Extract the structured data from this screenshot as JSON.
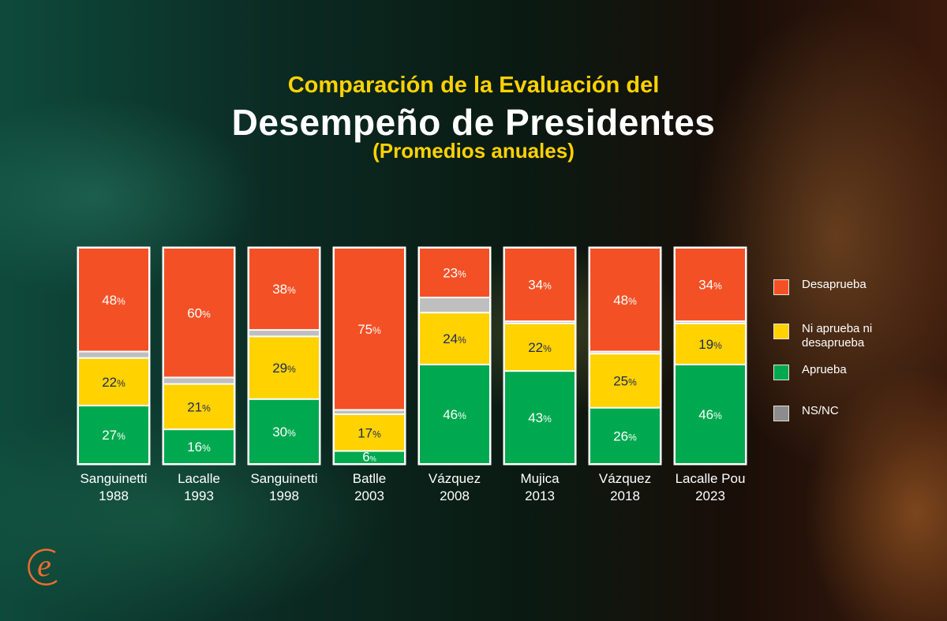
{
  "title_line1": "Comparación de la Evaluación del",
  "title_line2": "Desempeño de Presidentes",
  "title_line3": "(Promedios anuales)",
  "chart_data": {
    "type": "bar",
    "stacked": true,
    "title": "Comparación de la Evaluación del Desempeño de Presidentes (Promedios anuales)",
    "xlabel": "",
    "ylabel": "",
    "ylim": [
      0,
      100
    ],
    "unit": "%",
    "categories": [
      {
        "name": "Sanguinetti",
        "year": "1988"
      },
      {
        "name": "Lacalle",
        "year": "1993"
      },
      {
        "name": "Sanguinetti",
        "year": "1998"
      },
      {
        "name": "Batlle",
        "year": "2003"
      },
      {
        "name": "Vázquez",
        "year": "2008"
      },
      {
        "name": "Mujica",
        "year": "2013"
      },
      {
        "name": "Vázquez",
        "year": "2018"
      },
      {
        "name": "Lacalle Pou",
        "year": "2023"
      }
    ],
    "series": [
      {
        "key": "desaprueba",
        "name": "Desaprueba",
        "color": "#f35125",
        "text_color": "#ffffff",
        "labeled": true,
        "values": [
          48,
          60,
          38,
          75,
          23,
          34,
          48,
          34
        ]
      },
      {
        "key": "nsnc",
        "name": "NS/NC",
        "color": "#bfbfbf",
        "text_color": "#ffffff",
        "labeled": false,
        "values": [
          3,
          3,
          3,
          2,
          7,
          1,
          1,
          1
        ]
      },
      {
        "key": "ni",
        "name": "Ni aprueba ni desaprueba",
        "color": "#ffd200",
        "text_color": "#1b2a5a",
        "labeled": true,
        "values": [
          22,
          21,
          29,
          17,
          24,
          22,
          25,
          19
        ]
      },
      {
        "key": "aprueba",
        "name": "Aprueba",
        "color": "#00a94f",
        "text_color": "#ffffff",
        "labeled": true,
        "values": [
          27,
          16,
          30,
          6,
          46,
          43,
          26,
          46
        ]
      }
    ],
    "stack_order": "top-to-bottom: Desaprueba, NS/NC, Ni aprueba ni desaprueba, Aprueba",
    "legend_position": "right",
    "grid": false
  },
  "legend": [
    {
      "label": "Desaprueba",
      "color": "#f35125"
    },
    {
      "label": "Ni aprueba ni desaprueba",
      "color": "#ffd200"
    },
    {
      "label": "Aprueba",
      "color": "#00a94f"
    },
    {
      "label": "NS/NC",
      "color": "#8c8c8c"
    }
  ],
  "logo": {
    "glyph": "e",
    "color": "#ef6c2f"
  }
}
